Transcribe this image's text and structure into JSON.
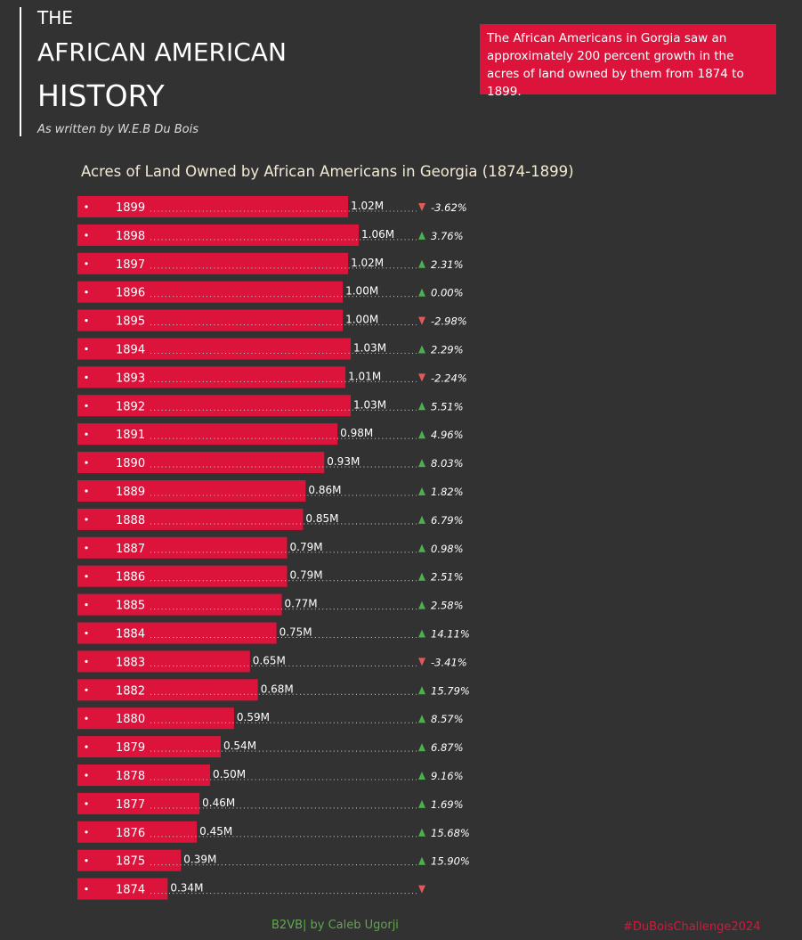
{
  "header": {
    "line1": "THE",
    "line2": "AFRICAN AMERICAN",
    "line3": "HISTORY",
    "byline": "As written by W.E.B Du Bois"
  },
  "callout": {
    "text": "The African Americans in Gorgia saw an approximately 200 percent growth in the acres of land owned by them from 1874 to 1899."
  },
  "footer": {
    "credit": "B2VB| by Caleb Ugorji",
    "hashtag": "#DuBoisChallenge2024"
  },
  "colors": {
    "background": "#323232",
    "bar": "#dc143c",
    "up": "#4caf50",
    "down": "#e05a5a",
    "title": "#f3ead3",
    "credit": "#5fa84c",
    "hashtag": "#dc143c"
  },
  "chart_data": {
    "type": "bar",
    "orientation": "horizontal",
    "title": "Acres of Land Owned by African Americans in Georgia (1874-1899)",
    "unit": "M",
    "xlim": [
      0,
      1.06
    ],
    "rows": [
      {
        "year": "1899",
        "value": 1.02,
        "label": "1.02M",
        "change": "-3.62%",
        "dir": "down"
      },
      {
        "year": "1898",
        "value": 1.06,
        "label": "1.06M",
        "change": "3.76%",
        "dir": "up"
      },
      {
        "year": "1897",
        "value": 1.02,
        "label": "1.02M",
        "change": "2.31%",
        "dir": "up"
      },
      {
        "year": "1896",
        "value": 1.0,
        "label": "1.00M",
        "change": "0.00%",
        "dir": "up"
      },
      {
        "year": "1895",
        "value": 1.0,
        "label": "1.00M",
        "change": "-2.98%",
        "dir": "down"
      },
      {
        "year": "1894",
        "value": 1.03,
        "label": "1.03M",
        "change": "2.29%",
        "dir": "up"
      },
      {
        "year": "1893",
        "value": 1.01,
        "label": "1.01M",
        "change": "-2.24%",
        "dir": "down"
      },
      {
        "year": "1892",
        "value": 1.03,
        "label": "1.03M",
        "change": "5.51%",
        "dir": "up"
      },
      {
        "year": "1891",
        "value": 0.98,
        "label": "0.98M",
        "change": "4.96%",
        "dir": "up"
      },
      {
        "year": "1890",
        "value": 0.93,
        "label": "0.93M",
        "change": "8.03%",
        "dir": "up"
      },
      {
        "year": "1889",
        "value": 0.86,
        "label": "0.86M",
        "change": "1.82%",
        "dir": "up"
      },
      {
        "year": "1888",
        "value": 0.85,
        "label": "0.85M",
        "change": "6.79%",
        "dir": "up"
      },
      {
        "year": "1887",
        "value": 0.79,
        "label": "0.79M",
        "change": "0.98%",
        "dir": "up"
      },
      {
        "year": "1886",
        "value": 0.79,
        "label": "0.79M",
        "change": "2.51%",
        "dir": "up"
      },
      {
        "year": "1885",
        "value": 0.77,
        "label": "0.77M",
        "change": "2.58%",
        "dir": "up"
      },
      {
        "year": "1884",
        "value": 0.75,
        "label": "0.75M",
        "change": "14.11%",
        "dir": "up"
      },
      {
        "year": "1883",
        "value": 0.65,
        "label": "0.65M",
        "change": "-3.41%",
        "dir": "down"
      },
      {
        "year": "1882",
        "value": 0.68,
        "label": "0.68M",
        "change": "15.79%",
        "dir": "up"
      },
      {
        "year": "1880",
        "value": 0.59,
        "label": "0.59M",
        "change": "8.57%",
        "dir": "up"
      },
      {
        "year": "1879",
        "value": 0.54,
        "label": "0.54M",
        "change": "6.87%",
        "dir": "up"
      },
      {
        "year": "1878",
        "value": 0.5,
        "label": "0.50M",
        "change": "9.16%",
        "dir": "up"
      },
      {
        "year": "1877",
        "value": 0.46,
        "label": "0.46M",
        "change": "1.69%",
        "dir": "up"
      },
      {
        "year": "1876",
        "value": 0.45,
        "label": "0.45M",
        "change": "15.68%",
        "dir": "up"
      },
      {
        "year": "1875",
        "value": 0.39,
        "label": "0.39M",
        "change": "15.90%",
        "dir": "up"
      },
      {
        "year": "1874",
        "value": 0.34,
        "label": "0.34M",
        "change": "",
        "dir": "down"
      }
    ]
  }
}
